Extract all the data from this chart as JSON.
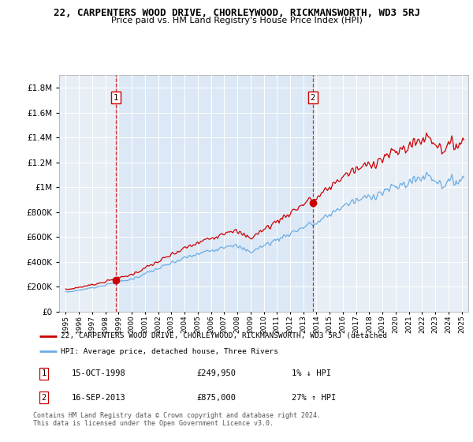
{
  "title": "22, CARPENTERS WOOD DRIVE, CHORLEYWOOD, RICKMANSWORTH, WD3 5RJ",
  "subtitle": "Price paid vs. HM Land Registry's House Price Index (HPI)",
  "sale1_date": 1998.79,
  "sale1_price": 249950,
  "sale2_date": 2013.71,
  "sale2_price": 875000,
  "legend_line1": "22, CARPENTERS WOOD DRIVE, CHORLEYWOOD, RICKMANSWORTH, WD3 5RJ (detached",
  "legend_line2": "HPI: Average price, detached house, Three Rivers",
  "table_row1_num": "1",
  "table_row1_date": "15-OCT-1998",
  "table_row1_price": "£249,950",
  "table_row1_hpi": "1% ↓ HPI",
  "table_row2_num": "2",
  "table_row2_date": "16-SEP-2013",
  "table_row2_price": "£875,000",
  "table_row2_hpi": "27% ↑ HPI",
  "footer": "Contains HM Land Registry data © Crown copyright and database right 2024.\nThis data is licensed under the Open Government Licence v3.0.",
  "hpi_color": "#6aade4",
  "sale_color": "#cc0000",
  "shade_color": "#dce8f5",
  "ylim_max": 1900000,
  "xlim_min": 1994.5,
  "xlim_max": 2025.5,
  "bg_color": "#e8eef5"
}
